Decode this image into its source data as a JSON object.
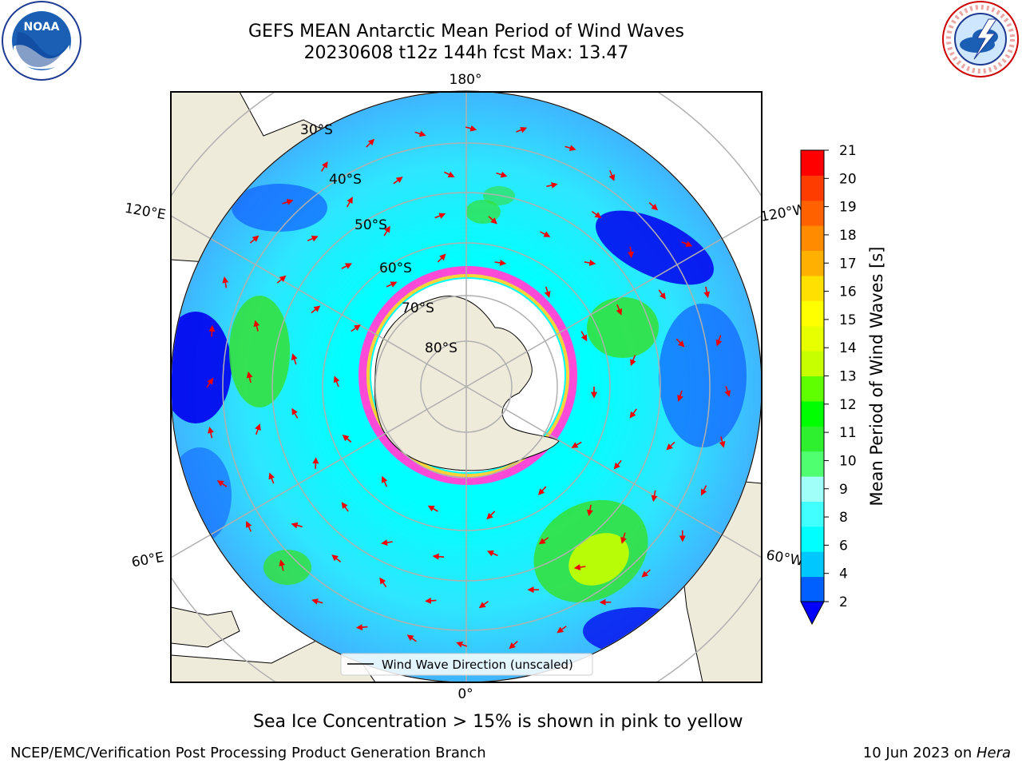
{
  "title": {
    "line1": "GEFS MEAN Antarctic Mean Period of Wind Waves",
    "line2": "20230608 t12z 144h fcst   Max: 13.47"
  },
  "logos": {
    "left_text": "NOAA",
    "right_text": "NATIONAL WEATHER SERVICE"
  },
  "map": {
    "projection": "south-polar-stereographic",
    "lat_labels": [
      "30°S",
      "40°S",
      "50°S",
      "60°S",
      "70°S",
      "80°S"
    ],
    "lon_labels": {
      "top": "180°",
      "bottom": "0°",
      "left_upper": "120°E",
      "left_lower": "60°E",
      "right_upper": "120°W",
      "right_lower": "60°W"
    },
    "legend_label": "Wind Wave Direction (unscaled)",
    "colors": {
      "land": "#efebdb",
      "ice_free_low": "#00ffff",
      "mid": "#3fb5ff",
      "low": "#0000ee",
      "green": "#35e035",
      "yellow_green": "#c8ff00",
      "ice_edge": "#ff4ad8",
      "ice_yellow": "#ffd23a",
      "arrow": "#ee0000"
    }
  },
  "colorbar": {
    "label": "Mean Period of Wind Waves [s]",
    "ticks": [
      "21",
      "20",
      "19",
      "18",
      "17",
      "16",
      "15",
      "14",
      "13",
      "12",
      "11",
      "10",
      "9",
      "8",
      "6",
      "4",
      "2"
    ],
    "colors_bottom_to_top": [
      "#0060ff",
      "#00c8ff",
      "#00ffff",
      "#42ffff",
      "#a0fff8",
      "#50ff70",
      "#2ef02e",
      "#00ff00",
      "#60ff00",
      "#c8ff00",
      "#e8ff00",
      "#ffff00",
      "#ffe000",
      "#ffb000",
      "#ff8c00",
      "#ff6000",
      "#ff3c00",
      "#ff0000"
    ],
    "extend_color": "#0000ff"
  },
  "caption": "Sea Ice Concentration > 15% is shown in pink to yellow",
  "footer": {
    "left": "NCEP/EMC/Verification Post Processing Product Generation Branch",
    "right_date": "10 Jun 2023 on ",
    "right_machine": "Hera"
  }
}
